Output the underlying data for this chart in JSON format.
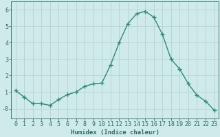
{
  "x": [
    0,
    1,
    2,
    3,
    4,
    5,
    6,
    7,
    8,
    9,
    10,
    11,
    12,
    13,
    14,
    15,
    16,
    17,
    18,
    19,
    20,
    21,
    22,
    23
  ],
  "y": [
    1.1,
    0.7,
    0.3,
    0.3,
    0.2,
    0.55,
    0.85,
    1.0,
    1.35,
    1.5,
    1.55,
    2.65,
    4.0,
    5.15,
    5.75,
    5.9,
    5.55,
    4.5,
    3.0,
    2.4,
    1.5,
    0.8,
    0.45,
    -0.1
  ],
  "line_color": "#2e8b72",
  "marker": "+",
  "markersize": 4,
  "linewidth": 1.0,
  "bg_color": "#ceeaea",
  "grid_color": "#b8d4d4",
  "xlabel": "Humidex (Indice chaleur)",
  "xlabel_fontsize": 6.5,
  "tick_color": "#2e6b5a",
  "tick_fontsize": 6,
  "ylim": [
    -0.6,
    6.5
  ],
  "xlim": [
    -0.5,
    23.5
  ],
  "ytick_labels": [
    "-0",
    "1",
    "2",
    "3",
    "4",
    "5",
    "6"
  ],
  "ytick_vals": [
    0,
    1,
    2,
    3,
    4,
    5,
    6
  ]
}
